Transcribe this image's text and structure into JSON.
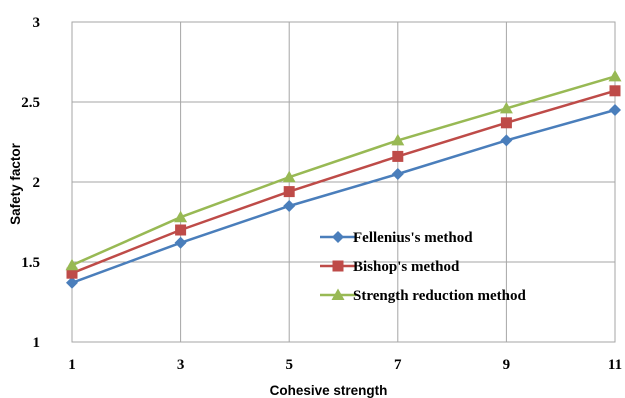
{
  "chart_data": {
    "type": "line",
    "title": "",
    "xlabel": "Cohesive strength",
    "ylabel": "Safety factor",
    "x": [
      1,
      3,
      5,
      7,
      9,
      11
    ],
    "xlim": [
      1,
      11
    ],
    "ylim": [
      1,
      3
    ],
    "xticks": [
      "1",
      "3",
      "5",
      "7",
      "9",
      "11"
    ],
    "yticks": [
      "1",
      "1.5",
      "2",
      "2.5",
      "3"
    ],
    "grid": true,
    "legend_position": "lower-right",
    "series": [
      {
        "name": "Fellenius's method",
        "values": [
          1.37,
          1.62,
          1.85,
          2.05,
          2.26,
          2.45
        ],
        "color": "#4a7ebb",
        "marker": "diamond"
      },
      {
        "name": "Bishop's method",
        "values": [
          1.43,
          1.7,
          1.94,
          2.16,
          2.37,
          2.57
        ],
        "color": "#be4b48",
        "marker": "square"
      },
      {
        "name": "Strength reduction method",
        "values": [
          1.48,
          1.78,
          2.03,
          2.26,
          2.46,
          2.66
        ],
        "color": "#98b954",
        "marker": "triangle"
      }
    ]
  }
}
